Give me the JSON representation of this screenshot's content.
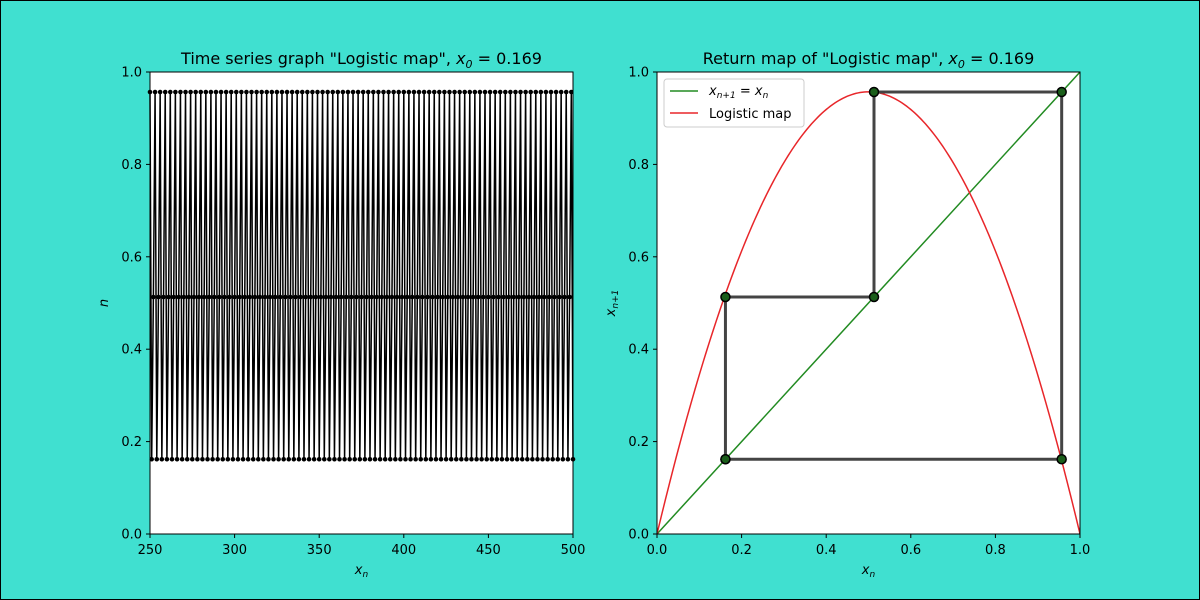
{
  "figure": {
    "background": "#40E0D0"
  },
  "chart_data": [
    {
      "type": "line",
      "title": "Time series graph \"Logistic map\", x0 = 0.169",
      "title_prefix": "Time series graph \"Logistic map\", ",
      "title_var": "x",
      "title_sub": "0",
      "title_suffix": " = 0.169",
      "xlabel": "x",
      "xlabel_sub": "n",
      "ylabel": "n",
      "xlim": [
        250,
        500
      ],
      "ylim": [
        0,
        1
      ],
      "xticks": [
        "250",
        "300",
        "350",
        "400",
        "450",
        "500"
      ],
      "xtick_values": [
        250,
        300,
        350,
        400,
        450,
        500
      ],
      "yticks": [
        "0.0",
        "0.2",
        "0.4",
        "0.6",
        "0.8",
        "1.0"
      ],
      "ytick_values": [
        0,
        0.2,
        0.4,
        0.6,
        0.8,
        1.0
      ],
      "series": [
        {
          "color": "#000000",
          "n_start": 250,
          "n_end": 500,
          "cycle": [
            0.9567,
            0.1618,
            0.513
          ]
        }
      ]
    },
    {
      "type": "line",
      "title": "Return map of \"Logistic map\", x0 = 0.169",
      "title_prefix": "Return map of \"Logistic map\", ",
      "title_var": "x",
      "title_sub": "0",
      "title_suffix": " = 0.169",
      "xlabel": "x",
      "xlabel_sub": "n",
      "ylabel": "x",
      "ylabel_sub": "n+1",
      "xlim": [
        0,
        1
      ],
      "ylim": [
        0,
        1
      ],
      "xticks": [
        "0.0",
        "0.2",
        "0.4",
        "0.6",
        "0.8",
        "1.0"
      ],
      "xtick_values": [
        0,
        0.2,
        0.4,
        0.6,
        0.8,
        1.0
      ],
      "yticks": [
        "0.0",
        "0.2",
        "0.4",
        "0.6",
        "0.8",
        "1.0"
      ],
      "ytick_values": [
        0,
        0.2,
        0.4,
        0.6,
        0.8,
        1.0
      ],
      "legend": {
        "placement": "upper-left",
        "entries": [
          {
            "text_var": "x",
            "text_sub": "n+1",
            "text_mid": " = ",
            "text_var2": "x",
            "text_sub2": "n",
            "color": "#228B22"
          },
          {
            "text": "Logistic map",
            "color": "#E8262A"
          }
        ]
      },
      "series": [
        {
          "kind": "identity",
          "color": "#228B22",
          "x": [
            0,
            1
          ],
          "y": [
            0,
            1
          ]
        },
        {
          "kind": "logistic",
          "color": "#E8262A",
          "r": 3.8284
        },
        {
          "kind": "cobweb",
          "color": "#444444",
          "points": [
            [
              0.1618,
              0.1618
            ],
            [
              0.1618,
              0.513
            ],
            [
              0.513,
              0.513
            ],
            [
              0.513,
              0.9567
            ],
            [
              0.9567,
              0.9567
            ],
            [
              0.9567,
              0.1618
            ],
            [
              0.1618,
              0.1618
            ]
          ]
        }
      ]
    }
  ]
}
